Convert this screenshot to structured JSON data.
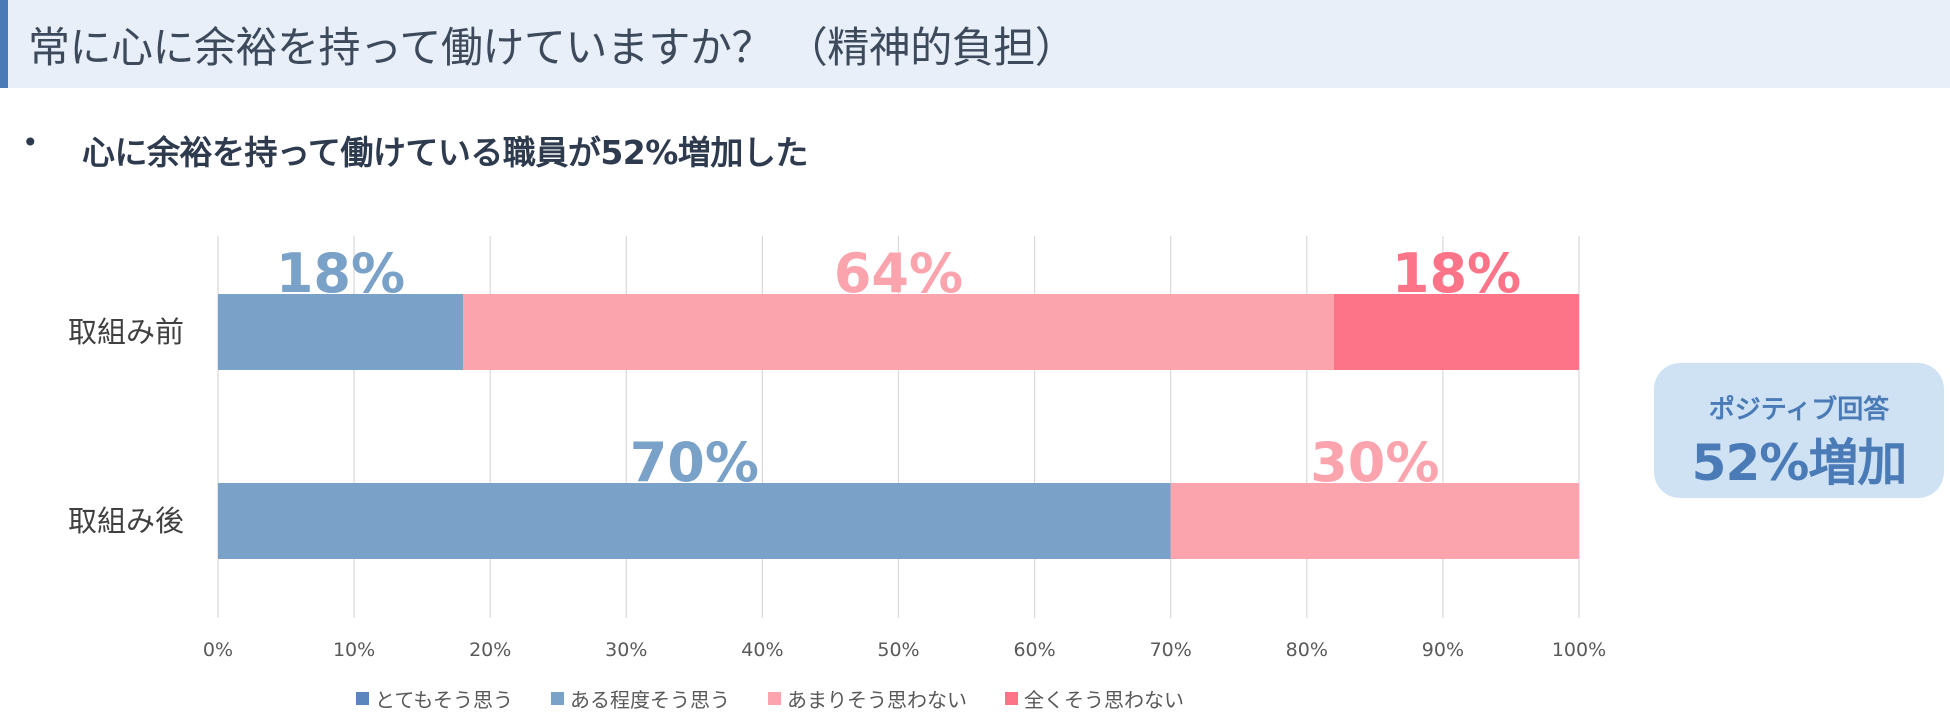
{
  "header": {
    "title": "常に心に余裕を持って働けていますか？ （精神的負担）"
  },
  "summary": {
    "bullet": "•",
    "text": "心に余裕を持って働けている職員が52%増加した"
  },
  "callout": {
    "top": "ポジティブ回答",
    "main": "52%増加"
  },
  "chart_data": {
    "type": "bar",
    "orientation": "horizontal",
    "stacked": "100%",
    "categories": [
      "取組み前",
      "取組み後"
    ],
    "series": [
      {
        "name": "とてもそう思う",
        "color": "#5a86bd",
        "values": [
          0,
          0
        ]
      },
      {
        "name": "ある程度そう思う",
        "color": "#7aa1c8",
        "values": [
          18,
          70
        ]
      },
      {
        "name": "あまりそう思わない",
        "color": "#fca4ae",
        "values": [
          64,
          30
        ]
      },
      {
        "name": "全くそう思わない",
        "color": "#fd7488",
        "values": [
          18,
          0
        ]
      }
    ],
    "data_labels": [
      {
        "category": "取組み前",
        "series": "ある程度そう思う",
        "text": "18%"
      },
      {
        "category": "取組み前",
        "series": "あまりそう思わない",
        "text": "64%"
      },
      {
        "category": "取組み前",
        "series": "全くそう思わない",
        "text": "18%"
      },
      {
        "category": "取組み後",
        "series": "ある程度そう思う",
        "text": "70%"
      },
      {
        "category": "取組み後",
        "series": "あまりそう思わない",
        "text": "30%"
      }
    ],
    "xlim": [
      0,
      100
    ],
    "x_ticks": [
      "0%",
      "10%",
      "20%",
      "30%",
      "40%",
      "50%",
      "60%",
      "70%",
      "80%",
      "90%",
      "100%"
    ],
    "grid": true,
    "legend": "bottom",
    "title": "",
    "xlabel": "",
    "ylabel": ""
  }
}
